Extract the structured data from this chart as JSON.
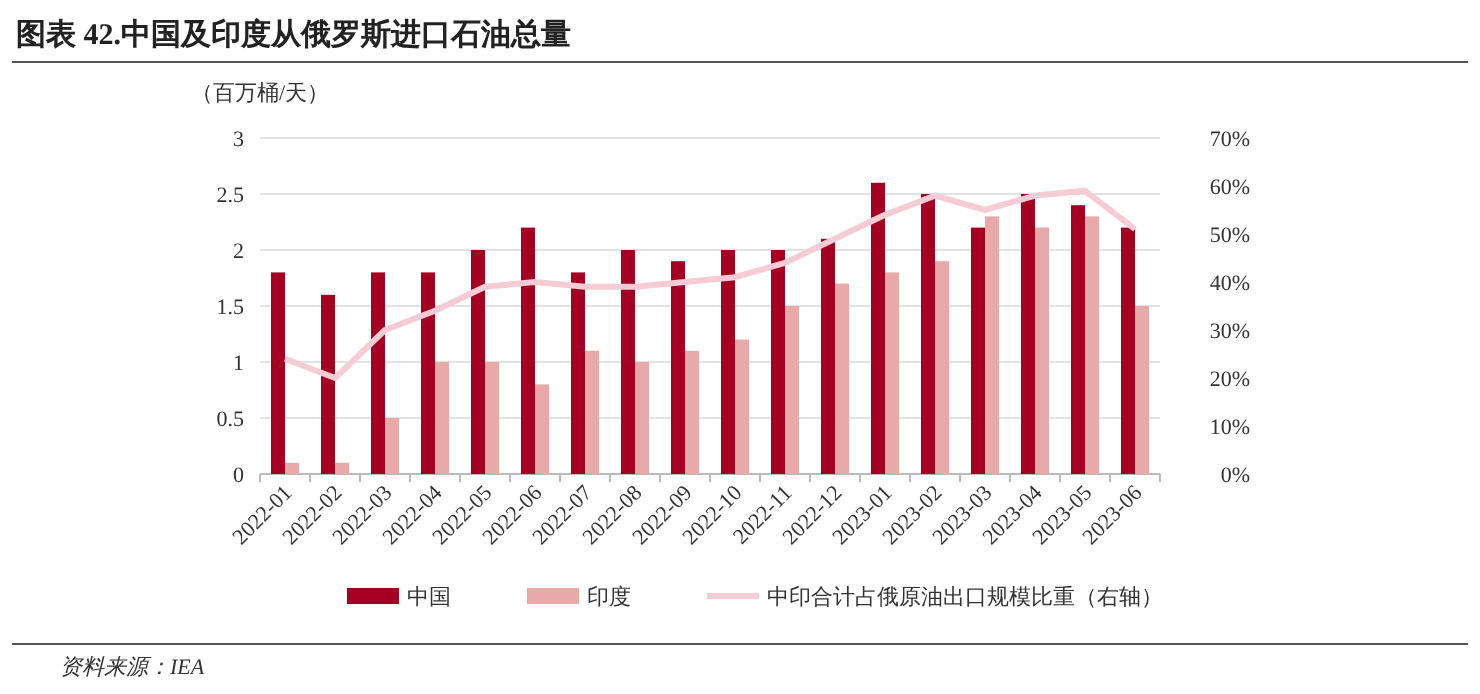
{
  "chart_data": {
    "type": "bar",
    "title": "图表 42.中国及印度从俄罗斯进口石油总量",
    "ylabel": "（百万桶/天）",
    "categories": [
      "2022-01",
      "2022-02",
      "2022-03",
      "2022-04",
      "2022-05",
      "2022-06",
      "2022-07",
      "2022-08",
      "2022-09",
      "2022-10",
      "2022-11",
      "2022-12",
      "2023-01",
      "2023-02",
      "2023-03",
      "2023-04",
      "2023-05",
      "2023-06"
    ],
    "series": [
      {
        "name": "中国",
        "color": "#a50021",
        "values": [
          1.8,
          1.6,
          1.8,
          1.8,
          2.0,
          2.2,
          1.8,
          2.0,
          1.9,
          2.0,
          2.0,
          2.1,
          2.6,
          2.5,
          2.2,
          2.5,
          2.4,
          2.2
        ]
      },
      {
        "name": "印度",
        "color": "#e8a9a9",
        "values": [
          0.1,
          0.1,
          0.5,
          1.0,
          1.0,
          0.8,
          1.1,
          1.0,
          1.1,
          1.2,
          1.5,
          1.7,
          1.8,
          1.9,
          2.3,
          2.2,
          2.3,
          1.5
        ]
      },
      {
        "name": "中印合计占俄原油出口规模比重（右轴）",
        "type": "line",
        "axis": "y2",
        "color": "#f5ccd5",
        "values": [
          24,
          20,
          30,
          34,
          39,
          40,
          39,
          39,
          40,
          41,
          44,
          49,
          54,
          58,
          55,
          58,
          59,
          51
        ]
      }
    ],
    "ylim": [
      0,
      3
    ],
    "yticks": [
      0,
      0.5,
      1,
      1.5,
      2,
      2.5,
      3
    ],
    "y2lim": [
      0,
      70
    ],
    "y2ticks": [
      {
        "value": 0,
        "label": "0%"
      },
      {
        "value": 10,
        "label": "10%"
      },
      {
        "value": 20,
        "label": "20%"
      },
      {
        "value": 30,
        "label": "30%"
      },
      {
        "value": 40,
        "label": "40%"
      },
      {
        "value": 50,
        "label": "50%"
      },
      {
        "value": 60,
        "label": "60%"
      },
      {
        "value": 70,
        "label": "70%"
      }
    ],
    "grid": "y",
    "legend": "bottom",
    "line_style": "solid",
    "annotations": [
      "资料来源：IEA"
    ]
  }
}
